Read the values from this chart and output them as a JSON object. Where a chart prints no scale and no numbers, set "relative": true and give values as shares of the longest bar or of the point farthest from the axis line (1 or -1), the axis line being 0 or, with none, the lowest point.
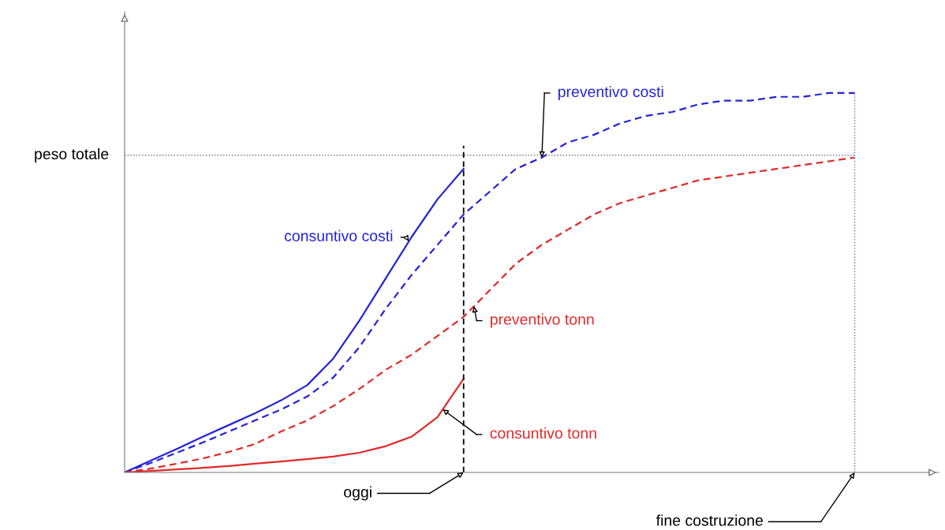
{
  "chart_data": {
    "type": "line",
    "relative": true,
    "categories": [
      null,
      null,
      null,
      null,
      null,
      null,
      null,
      null,
      null,
      null,
      null,
      null,
      null,
      null,
      null,
      null,
      null,
      null,
      null,
      null,
      null,
      null,
      null,
      null,
      null,
      null,
      null,
      null,
      null
    ],
    "series": [
      {
        "name": "consuntivo costi",
        "color": "#2424d8",
        "line_style": "solid",
        "values": [
          0,
          0.031,
          0.062,
          0.094,
          0.125,
          0.156,
          0.19,
          0.23,
          0.3,
          0.4,
          0.51,
          0.62,
          0.72,
          0.8,
          null,
          null,
          null,
          null,
          null,
          null,
          null,
          null,
          null,
          null,
          null,
          null,
          null,
          null,
          null
        ]
      },
      {
        "name": "preventivo costi",
        "color": "#2424d8",
        "line_style": "dashed",
        "values": [
          0,
          0.025,
          0.052,
          0.079,
          0.108,
          0.137,
          0.166,
          0.2,
          0.25,
          0.33,
          0.43,
          0.52,
          0.6,
          0.68,
          0.74,
          0.8,
          0.83,
          0.87,
          0.89,
          0.92,
          0.94,
          0.95,
          0.97,
          0.98,
          0.98,
          0.99,
          0.99,
          1.0,
          1.0
        ]
      },
      {
        "name": "preventivo tonn",
        "color": "#e02a2a",
        "line_style": "dashed",
        "values": [
          0,
          0.01,
          0.023,
          0.037,
          0.054,
          0.075,
          0.108,
          0.137,
          0.175,
          0.22,
          0.27,
          0.31,
          0.36,
          0.41,
          0.48,
          0.55,
          0.6,
          0.64,
          0.68,
          0.71,
          0.73,
          0.75,
          0.77,
          0.78,
          0.79,
          0.8,
          0.81,
          0.82,
          0.83
        ]
      },
      {
        "name": "consuntivo tonn",
        "color": "#e02a2a",
        "line_style": "solid",
        "values": [
          0,
          0.004,
          0.008,
          0.012,
          0.017,
          0.023,
          0.029,
          0.035,
          0.042,
          0.052,
          0.069,
          0.094,
          0.146,
          0.247,
          null,
          null,
          null,
          null,
          null,
          null,
          null,
          null,
          null,
          null,
          null,
          null,
          null,
          null,
          null
        ]
      }
    ],
    "ref_lines": [
      {
        "axis": "y",
        "value": 0.836,
        "label": "peso totale",
        "color": "#555555",
        "line_style": "dotted"
      }
    ],
    "annotations": [
      "oggi",
      "fine costruzione"
    ],
    "legend": false
  }
}
